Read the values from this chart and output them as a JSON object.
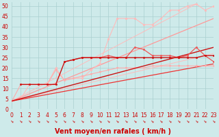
{
  "bg_color": "#ceeaea",
  "grid_color": "#aacfcf",
  "axis_color": "#888888",
  "xlabel": "Vent moyen/en rafales ( km/h )",
  "xlabel_color": "#cc0000",
  "xlabel_fontsize": 7,
  "tick_color": "#cc0000",
  "tick_fontsize": 5.5,
  "arrow_color": "#cc0000",
  "xlim": [
    0,
    23
  ],
  "ylim": [
    0,
    52
  ],
  "xticks": [
    0,
    1,
    2,
    3,
    4,
    5,
    6,
    7,
    8,
    9,
    10,
    11,
    12,
    13,
    14,
    15,
    16,
    17,
    18,
    19,
    20,
    21,
    22,
    23
  ],
  "yticks": [
    0,
    5,
    10,
    15,
    20,
    25,
    30,
    35,
    40,
    45,
    50
  ],
  "series": [
    {
      "x": [
        0,
        23
      ],
      "y": [
        4,
        27
      ],
      "color": "#ffbbbb",
      "linewidth": 0.7,
      "linestyle": "-",
      "marker": null,
      "zorder": 2
    },
    {
      "x": [
        0,
        21
      ],
      "y": [
        4,
        51
      ],
      "color": "#ffbbbb",
      "linewidth": 0.7,
      "linestyle": "-",
      "marker": null,
      "zorder": 2
    },
    {
      "x": [
        0,
        1,
        2,
        3,
        4,
        5,
        6,
        7,
        8,
        9,
        10,
        11,
        12,
        13,
        14,
        15,
        16,
        17,
        18,
        19,
        20,
        21,
        22,
        23
      ],
      "y": [
        4,
        5,
        12,
        12,
        12,
        20,
        14,
        15,
        15,
        19,
        22,
        34,
        44,
        44,
        44,
        41,
        41,
        44,
        48,
        48,
        50,
        51,
        48,
        50
      ],
      "color": "#ffbbbb",
      "linewidth": 0.8,
      "linestyle": "-",
      "marker": "o",
      "markersize": 2.0,
      "zorder": 3
    },
    {
      "x": [
        0,
        23
      ],
      "y": [
        4,
        44
      ],
      "color": "#ff9999",
      "linewidth": 0.9,
      "linestyle": "-",
      "marker": null,
      "zorder": 2
    },
    {
      "x": [
        6,
        7,
        8,
        9,
        10,
        11,
        12,
        13,
        14,
        15,
        16,
        17,
        18,
        19,
        20,
        21,
        22,
        23
      ],
      "y": [
        23,
        24,
        25,
        25,
        25,
        26,
        25,
        25,
        30,
        29,
        26,
        26,
        26,
        25,
        26,
        30,
        26,
        23
      ],
      "color": "#ee5555",
      "linewidth": 0.9,
      "linestyle": "-",
      "marker": "o",
      "markersize": 1.8,
      "zorder": 5
    },
    {
      "x": [
        1,
        2,
        3,
        4,
        5,
        6,
        7,
        8,
        9,
        10,
        11,
        12,
        13,
        14,
        15,
        16,
        17,
        18,
        19,
        20,
        21,
        22,
        23
      ],
      "y": [
        12,
        12,
        12,
        12,
        12,
        23,
        24,
        25,
        25,
        25,
        25,
        25,
        25,
        25,
        25,
        25,
        25,
        25,
        25,
        25,
        25,
        26,
        26
      ],
      "color": "#cc1111",
      "linewidth": 1.0,
      "linestyle": "-",
      "marker": "o",
      "markersize": 1.8,
      "zorder": 6
    },
    {
      "x": [
        0,
        23
      ],
      "y": [
        4,
        30
      ],
      "color": "#cc1111",
      "linewidth": 1.0,
      "linestyle": "-",
      "marker": null,
      "zorder": 4
    },
    {
      "x": [
        0,
        23
      ],
      "y": [
        4,
        22
      ],
      "color": "#ee3333",
      "linewidth": 0.9,
      "linestyle": "-",
      "marker": null,
      "zorder": 3
    },
    {
      "x": [
        0,
        1,
        2,
        3,
        4,
        5,
        6,
        7,
        8,
        9,
        10,
        11,
        12,
        13,
        14,
        15,
        16,
        17,
        18,
        19,
        20,
        21,
        22,
        23
      ],
      "y": [
        4,
        12,
        12,
        12,
        12,
        19,
        14,
        15,
        16,
        17,
        18,
        19,
        20,
        20,
        20,
        20,
        21,
        21,
        21,
        21,
        21,
        21,
        21,
        21
      ],
      "color": "#ffaaaa",
      "linewidth": 0.8,
      "linestyle": "-",
      "marker": "v",
      "markersize": 2.0,
      "zorder": 3
    }
  ]
}
